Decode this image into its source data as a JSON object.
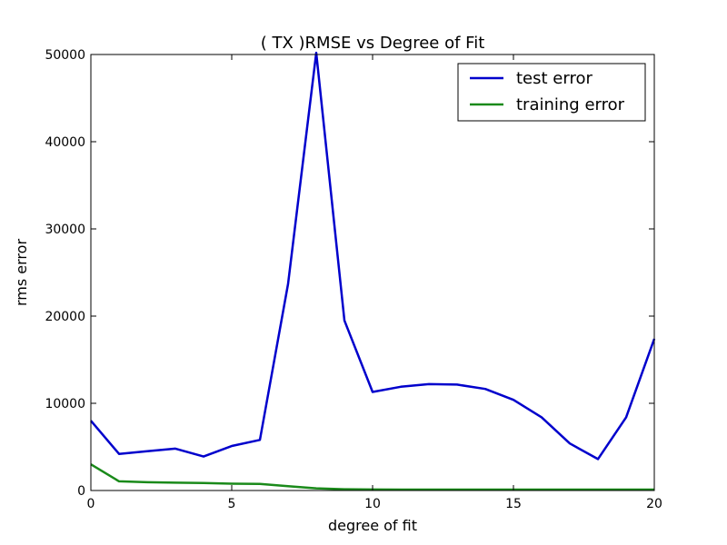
{
  "chart_data": {
    "type": "line",
    "title": "(  TX  )RMSE vs Degree of Fit",
    "xlabel": "degree of fit",
    "ylabel": "rms error",
    "xlim": [
      0,
      20
    ],
    "ylim": [
      0,
      50000
    ],
    "xticks": [
      0,
      5,
      10,
      15,
      20
    ],
    "yticks": [
      0,
      10000,
      20000,
      30000,
      40000,
      50000
    ],
    "x": [
      0,
      1,
      2,
      3,
      4,
      5,
      6,
      7,
      8,
      9,
      10,
      11,
      12,
      13,
      14,
      15,
      16,
      17,
      18,
      19,
      20
    ],
    "series": [
      {
        "name": "test error",
        "color": "#0000cc",
        "values": [
          8000,
          4200,
          4500,
          4800,
          3900,
          5100,
          5800,
          23700,
          50200,
          19500,
          11300,
          11900,
          12200,
          12150,
          11650,
          10400,
          8400,
          5400,
          3600,
          8400,
          17400
        ]
      },
      {
        "name": "training error",
        "color": "#1a8a1a",
        "values": [
          3000,
          1050,
          950,
          900,
          850,
          780,
          760,
          500,
          250,
          150,
          110,
          100,
          100,
          100,
          100,
          100,
          100,
          100,
          100,
          100,
          100
        ]
      }
    ],
    "legend_position": "top-right",
    "grid": false
  }
}
